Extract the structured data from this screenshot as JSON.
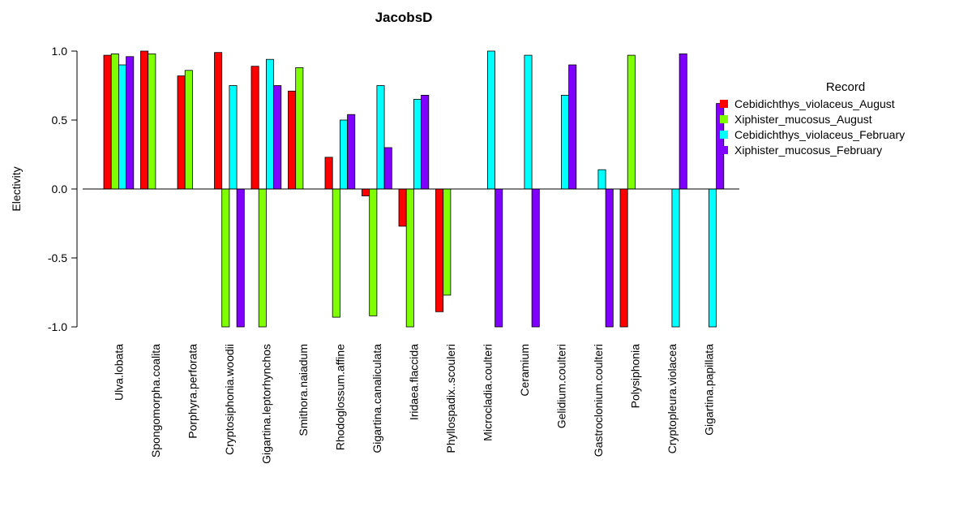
{
  "chart_data": {
    "type": "bar",
    "title": "JacobsD",
    "xlabel": "",
    "ylabel": "Electivity",
    "ylim": [
      -1.0,
      1.0
    ],
    "yticks": [
      "1.0",
      "0.5",
      "0.0",
      "-0.5",
      "-1.0"
    ],
    "ytick_values": [
      1.0,
      0.5,
      0.0,
      -0.5,
      -1.0
    ],
    "grid": false,
    "legend_title": "Record",
    "legend_position": "right",
    "categories": [
      "Ulva.lobata",
      "Spongomorpha.coalita",
      "Porphyra.perforata",
      "Cryptosiphonia.woodii",
      "Gigartina.leptorhynchos",
      "Smithora.naiadum",
      "Rhodoglossum.affine",
      "Gigartina.canaliculata",
      "Iridaea.flaccida",
      "Phyllospadix..scouleri",
      "Microcladia.coulteri",
      "Ceramium",
      "Gelidium.coulteri",
      "Gastroclonium.coulteri",
      "Polysiphonia",
      "Cryptopleura.violacea",
      "Gigartina.papillata"
    ],
    "series": [
      {
        "name": "Cebidichthys_violaceus_August",
        "color": "#ff0000",
        "values": [
          0.97,
          1.0,
          0.82,
          0.99,
          0.89,
          0.71,
          0.23,
          -0.05,
          -0.27,
          -0.89,
          null,
          null,
          null,
          null,
          -1.0,
          null,
          null
        ]
      },
      {
        "name": "Xiphister_mucosus_August",
        "color": "#80ff00",
        "values": [
          0.98,
          0.98,
          0.86,
          -1.0,
          -1.0,
          0.88,
          -0.93,
          -0.92,
          -1.0,
          -0.77,
          null,
          null,
          null,
          null,
          0.97,
          null,
          null
        ]
      },
      {
        "name": "Cebidichthys_violaceus_February",
        "color": "#00ffff",
        "values": [
          0.9,
          null,
          null,
          0.75,
          0.94,
          null,
          0.5,
          0.75,
          0.65,
          null,
          1.0,
          0.97,
          0.68,
          0.14,
          null,
          -1.0,
          -1.0
        ]
      },
      {
        "name": "Xiphister_mucosus_February",
        "color": "#8000ff",
        "values": [
          0.96,
          null,
          null,
          -1.0,
          0.75,
          null,
          0.54,
          0.3,
          0.68,
          null,
          -1.0,
          -1.0,
          0.9,
          -1.0,
          null,
          0.98,
          0.62
        ]
      }
    ]
  }
}
